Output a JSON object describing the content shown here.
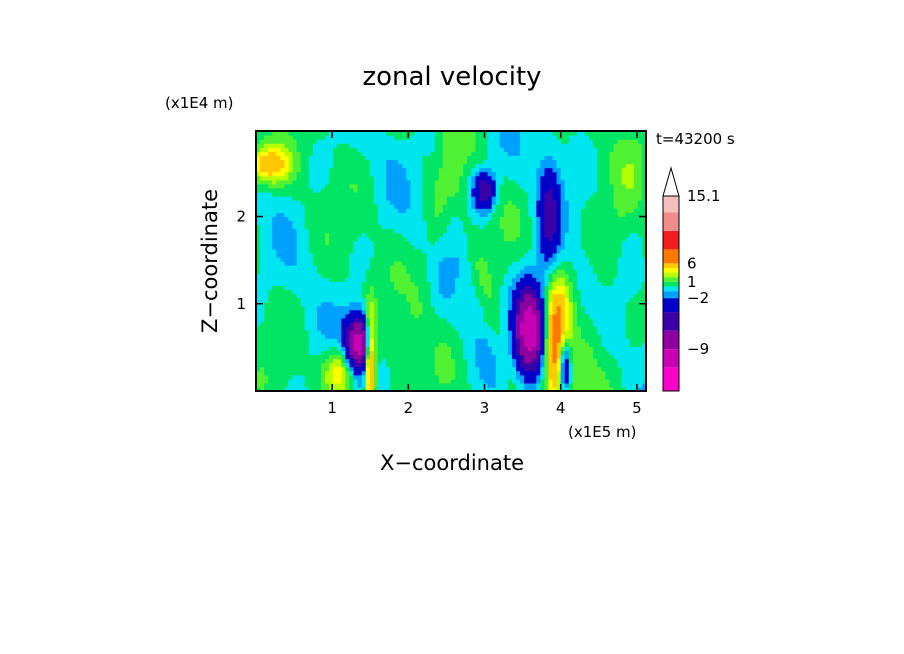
{
  "chart_data": {
    "type": "heatmap",
    "title": "zonal velocity",
    "xlabel": "X−coordinate",
    "ylabel": "Z−coordinate",
    "x_unit": "(x1E5 m)",
    "y_unit": "(x1E4 m)",
    "time_label": "t=43200 s",
    "x_ticks": [
      "1",
      "2",
      "3",
      "4",
      "5"
    ],
    "y_ticks": [
      "1",
      "2"
    ],
    "xlim": [
      0,
      5.12
    ],
    "ylim": [
      0,
      2.98
    ],
    "colorbar": {
      "labels": [
        "15.1",
        "6",
        "1",
        "−2",
        "−9"
      ],
      "label_values": [
        15.1,
        6,
        1,
        -2,
        -9
      ],
      "levels": [
        -15,
        -12,
        -9,
        -6,
        -4,
        -2,
        -1,
        0,
        1,
        2,
        3,
        4,
        6,
        9,
        12,
        15.1
      ],
      "colors": [
        "#ff00c8",
        "#c800b4",
        "#8c00a0",
        "#3c00a8",
        "#0000c8",
        "#00a0ff",
        "#00e6f0",
        "#00e664",
        "#50f032",
        "#b4ff00",
        "#ffff00",
        "#ffc800",
        "#ff7800",
        "#f01e1e",
        "#f08c8c",
        "#f5bebe"
      ],
      "extend": "max"
    },
    "features": [
      {
        "x": 1.35,
        "z": 0.55,
        "amp": -11,
        "sx": 0.12,
        "sz": 0.22
      },
      {
        "x": 1.5,
        "z": 0.35,
        "amp": 8,
        "sx": 0.05,
        "sz": 0.4
      },
      {
        "x": 1.1,
        "z": 0.25,
        "amp": 4,
        "sx": 0.15,
        "sz": 0.2
      },
      {
        "x": 3.6,
        "z": 0.7,
        "amp": -12,
        "sx": 0.14,
        "sz": 0.35
      },
      {
        "x": 3.95,
        "z": 0.5,
        "amp": 8,
        "sx": 0.12,
        "sz": 0.5
      },
      {
        "x": 4.05,
        "z": 0.3,
        "amp": -8,
        "sx": 0.06,
        "sz": 0.25
      },
      {
        "x": 3.0,
        "z": 2.3,
        "amp": -6,
        "sx": 0.1,
        "sz": 0.15
      },
      {
        "x": 3.85,
        "z": 2.0,
        "amp": -4,
        "sx": 0.1,
        "sz": 0.5
      },
      {
        "x": 0.15,
        "z": 2.6,
        "amp": 5,
        "sx": 0.2,
        "sz": 0.15
      }
    ]
  }
}
